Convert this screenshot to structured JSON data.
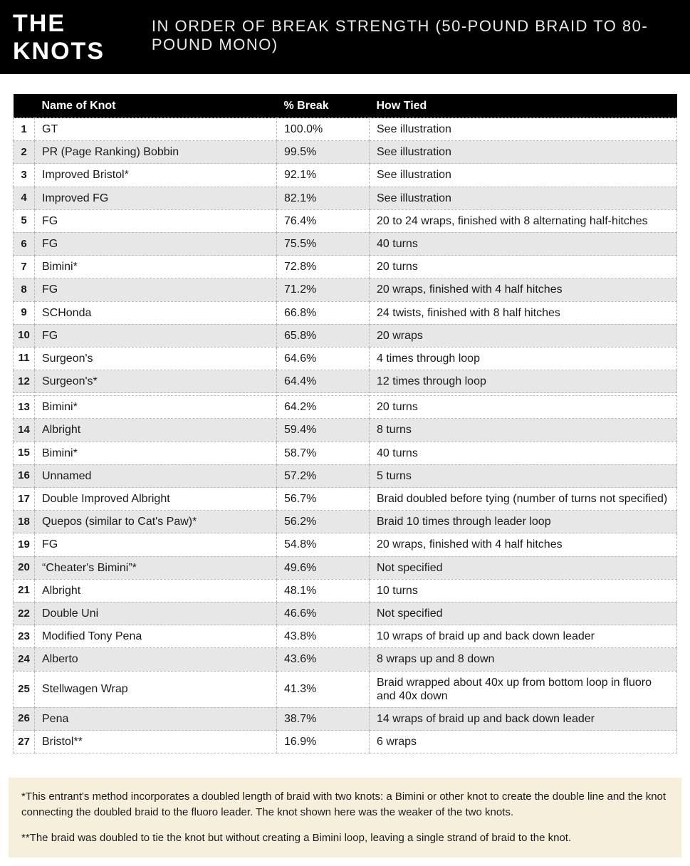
{
  "header": {
    "title_main": "THE KNOTS",
    "title_sub": "IN ORDER OF BREAK STRENGTH (50-POUND BRAID TO 80-POUND MONO)"
  },
  "colors": {
    "bar_bg": "#000000",
    "bar_text": "#ffffff",
    "row_odd": "#ffffff",
    "row_even": "#e7e7e7",
    "border": "#b8b8b8",
    "footnote_bg": "#f6efdb"
  },
  "columns": {
    "rank": " ",
    "name": "Name of Knot",
    "break": "% Break",
    "tied": "How Tied"
  },
  "gap_after_rank": 12,
  "rows": [
    {
      "rank": "1",
      "name": "GT",
      "break": "100.0%",
      "tied": "See illustration"
    },
    {
      "rank": "2",
      "name": "PR (Page Ranking) Bobbin",
      "break": "99.5%",
      "tied": "See illustration"
    },
    {
      "rank": "3",
      "name": "Improved Bristol*",
      "break": "92.1%",
      "tied": "See illustration"
    },
    {
      "rank": "4",
      "name": "Improved FG",
      "break": "82.1%",
      "tied": "See illustration"
    },
    {
      "rank": "5",
      "name": "FG",
      "break": "76.4%",
      "tied": "20 to 24 wraps, finished with 8 alternating half-hitches"
    },
    {
      "rank": "6",
      "name": "FG",
      "break": "75.5%",
      "tied": "40 turns"
    },
    {
      "rank": "7",
      "name": "Bimini*",
      "break": "72.8%",
      "tied": "20 turns"
    },
    {
      "rank": "8",
      "name": "FG",
      "break": "71.2%",
      "tied": "20 wraps, finished with 4 half hitches"
    },
    {
      "rank": "9",
      "name": "SCHonda",
      "break": "66.8%",
      "tied": "24 twists, finished with 8 half hitches"
    },
    {
      "rank": "10",
      "name": "FG",
      "break": "65.8%",
      "tied": "20 wraps"
    },
    {
      "rank": "11",
      "name": "Surgeon's",
      "break": "64.6%",
      "tied": "4 times through loop"
    },
    {
      "rank": "12",
      "name": "Surgeon's*",
      "break": "64.4%",
      "tied": "12 times through loop"
    },
    {
      "rank": "13",
      "name": "Bimini*",
      "break": "64.2%",
      "tied": "20 turns"
    },
    {
      "rank": "14",
      "name": "Albright",
      "break": "59.4%",
      "tied": "8 turns"
    },
    {
      "rank": "15",
      "name": "Bimini*",
      "break": "58.7%",
      "tied": "40 turns"
    },
    {
      "rank": "16",
      "name": "Unnamed",
      "break": "57.2%",
      "tied": "5 turns"
    },
    {
      "rank": "17",
      "name": "Double Improved Albright",
      "break": "56.7%",
      "tied": "Braid doubled before tying (number of turns not specified)"
    },
    {
      "rank": "18",
      "name": "Quepos (similar to Cat's Paw)*",
      "break": "56.2%",
      "tied": "Braid 10 times through leader loop"
    },
    {
      "rank": "19",
      "name": "FG",
      "break": "54.8%",
      "tied": "20 wraps, finished with 4 half hitches"
    },
    {
      "rank": "20",
      "name": "“Cheater's Bimini”*",
      "break": "49.6%",
      "tied": "Not specified"
    },
    {
      "rank": "21",
      "name": "Albright",
      "break": "48.1%",
      "tied": "10 turns"
    },
    {
      "rank": "22",
      "name": "Double Uni",
      "break": "46.6%",
      "tied": "Not specified"
    },
    {
      "rank": "23",
      "name": "Modified Tony Pena",
      "break": "43.8%",
      "tied": "10 wraps of braid up and back down leader"
    },
    {
      "rank": "24",
      "name": "Alberto",
      "break": "43.6%",
      "tied": "8 wraps up and 8 down"
    },
    {
      "rank": "25",
      "name": "Stellwagen Wrap",
      "break": "41.3%",
      "tied": "Braid wrapped about 40x up from bottom loop in fluoro and 40x down"
    },
    {
      "rank": "26",
      "name": "Pena",
      "break": "38.7%",
      "tied": "14 wraps of braid up and back down leader"
    },
    {
      "rank": "27",
      "name": "Bristol**",
      "break": "16.9%",
      "tied": "6 wraps"
    }
  ],
  "footnotes": {
    "note1": "*This entrant's method incorporates a doubled length of braid with two knots: a Bimini or other knot to create the double line and the knot connecting the doubled braid to the fluoro leader. The knot shown here was the weaker of the two knots.",
    "note2": "**The braid was doubled to tie the knot but without creating a Bimini loop, leaving a single strand of braid to the knot."
  }
}
